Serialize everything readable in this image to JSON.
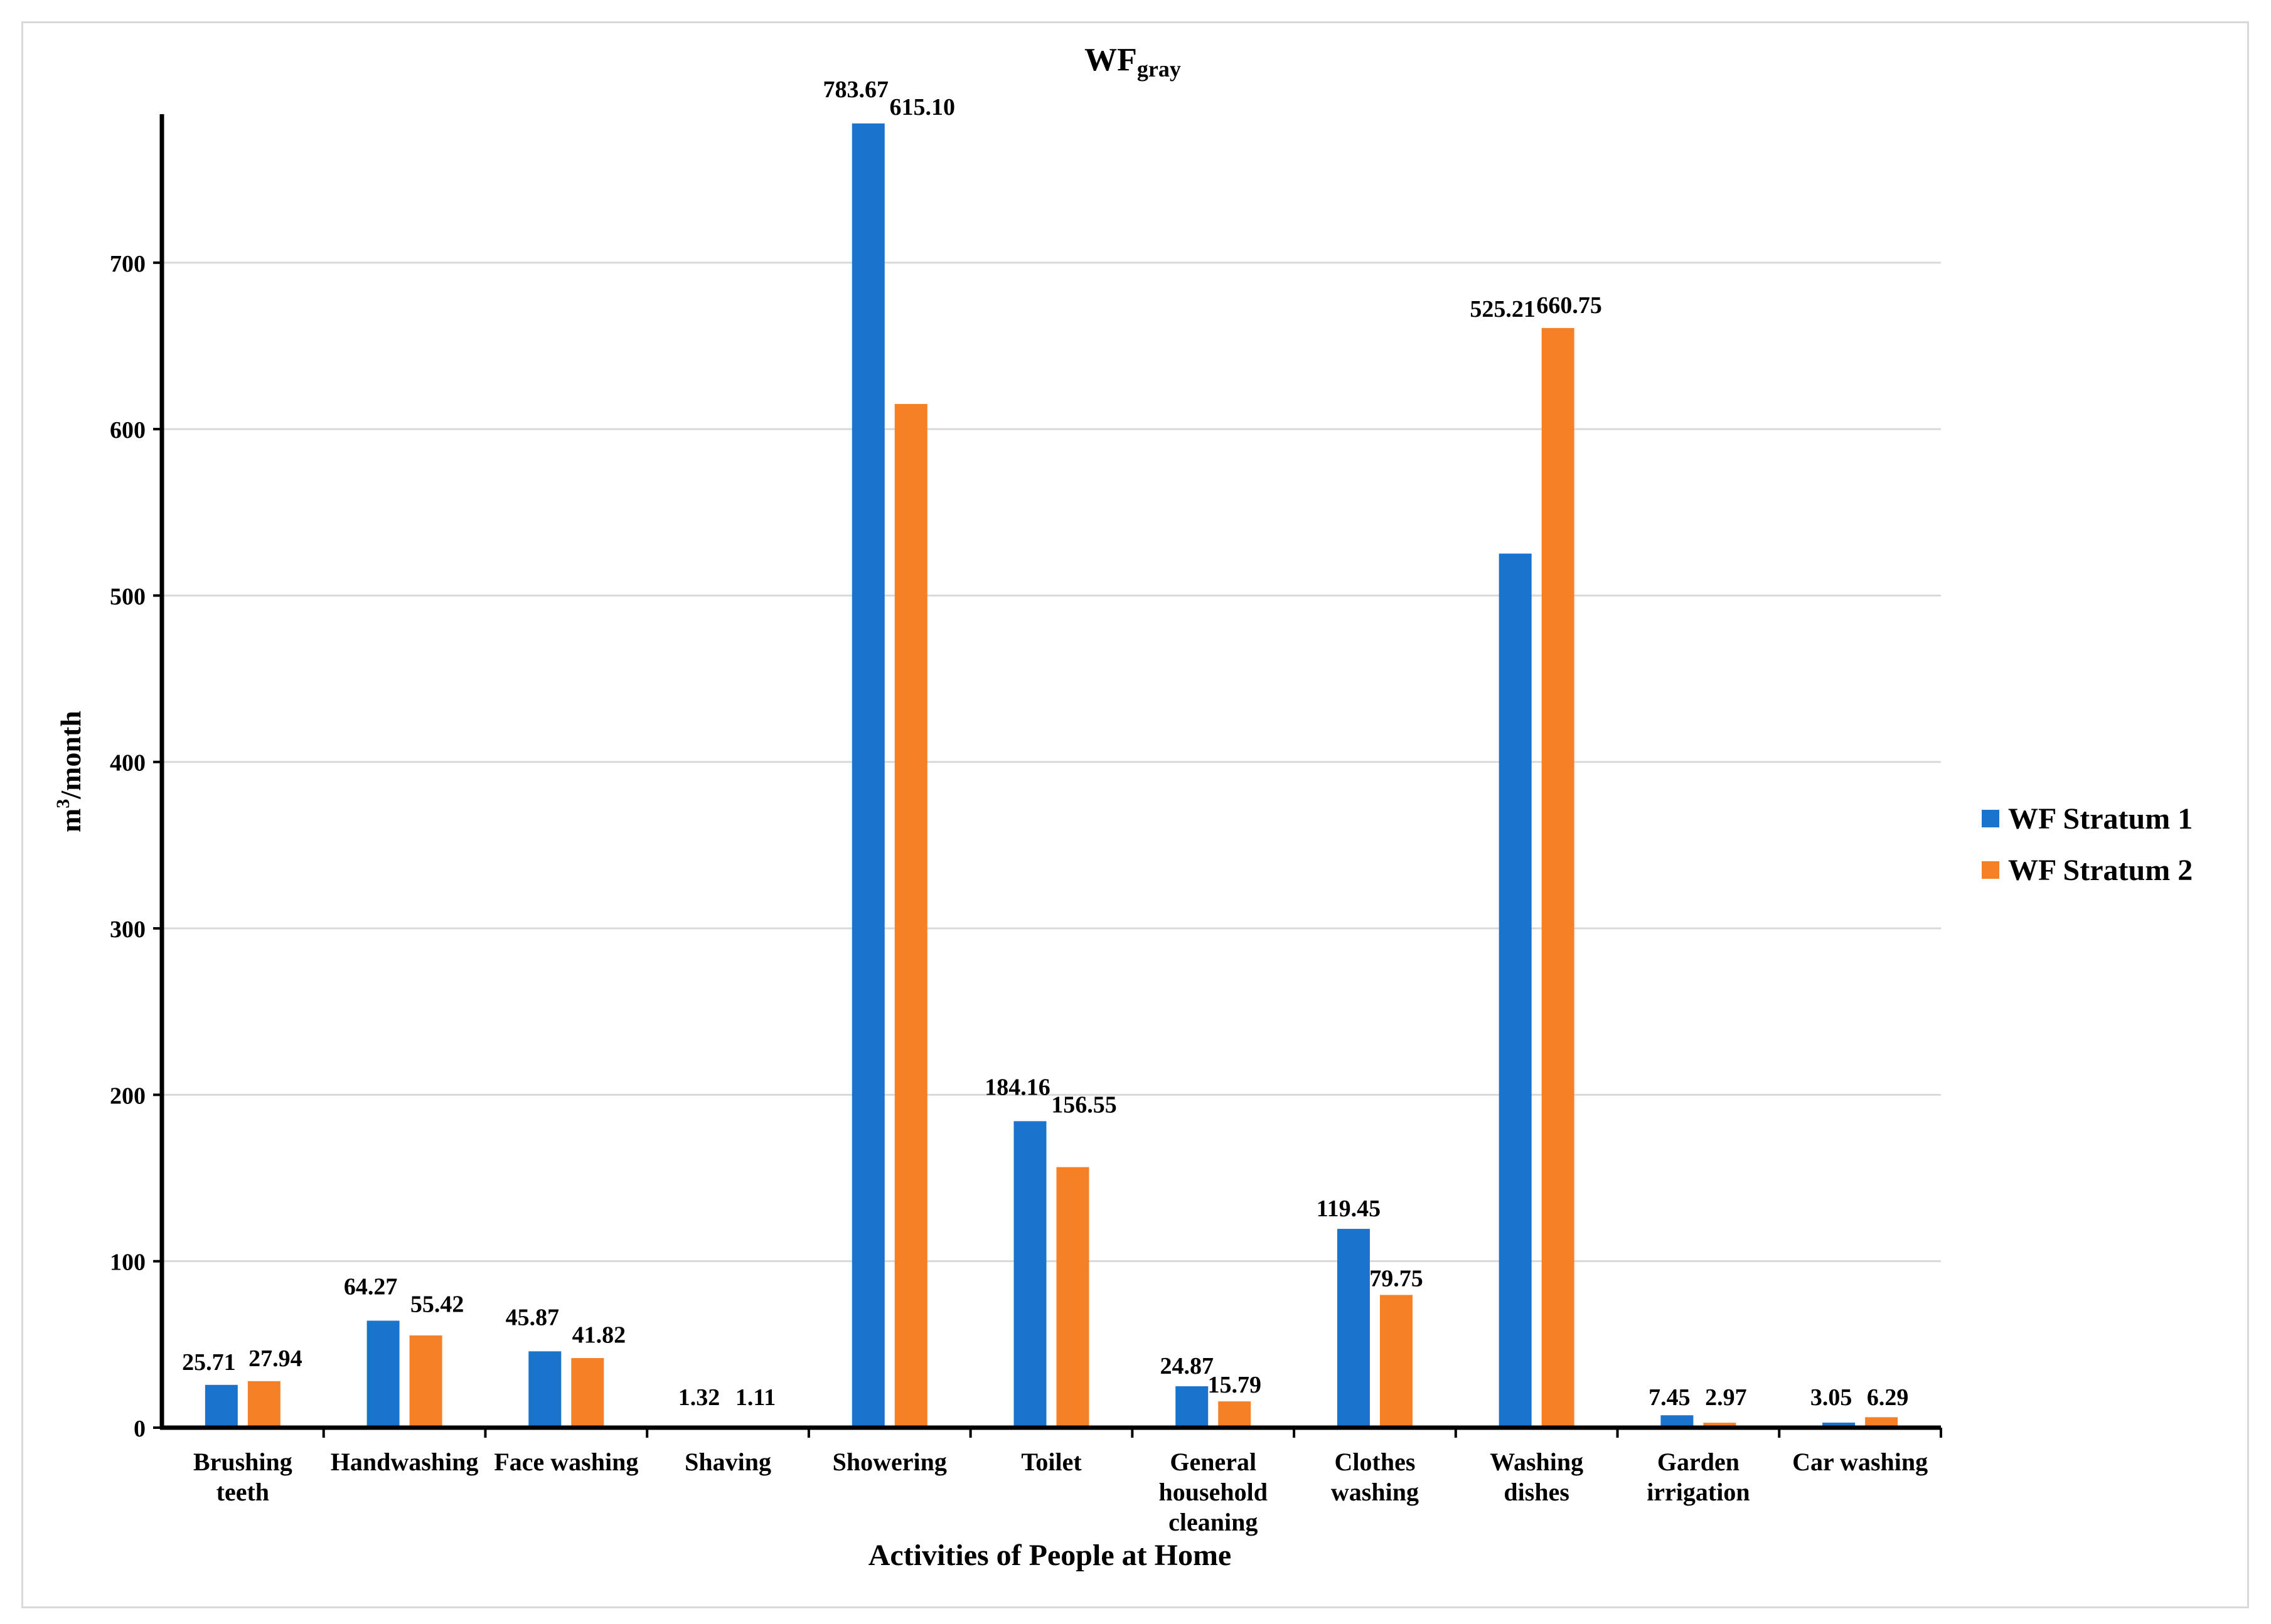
{
  "chart_data": {
    "type": "bar",
    "title": "WF",
    "title_subscript": "gray",
    "xlabel": "Activities of People at Home",
    "ylabel": "m",
    "ylabel_superscript": "3",
    "ylabel_suffix": "/month",
    "ylim": [
      0,
      790
    ],
    "yticks": [
      0,
      100,
      200,
      300,
      400,
      500,
      600,
      700
    ],
    "grid": true,
    "legend_position": "right",
    "categories": [
      [
        "Brushing",
        "teeth"
      ],
      [
        "Handwashing"
      ],
      [
        "Face washing"
      ],
      [
        "Shaving"
      ],
      [
        "Showering"
      ],
      [
        "Toilet"
      ],
      [
        "General",
        "household",
        "cleaning"
      ],
      [
        "Clothes",
        "washing"
      ],
      [
        "Washing",
        "dishes"
      ],
      [
        "Garden",
        "irrigation"
      ],
      [
        "Car washing"
      ]
    ],
    "series": [
      {
        "name": "WF Stratum 1",
        "color": "#1a73cc",
        "values": [
          25.71,
          64.27,
          45.87,
          1.32,
          783.67,
          184.16,
          24.87,
          119.45,
          525.21,
          7.45,
          3.05
        ],
        "labels": [
          "25.71",
          "64.27",
          "45.87",
          "1.32",
          "783.67",
          "184.16",
          "24.87",
          "119.45",
          "525.21",
          "7.45",
          "3.05"
        ]
      },
      {
        "name": "WF Stratum 2",
        "color": "#f58025",
        "values": [
          27.94,
          55.42,
          41.82,
          1.11,
          615.1,
          156.55,
          15.79,
          79.75,
          660.75,
          2.97,
          6.29
        ],
        "labels": [
          "27.94",
          "55.42",
          "41.82",
          "1.11",
          "615.10",
          "156.55",
          "15.79",
          "79.75",
          "660.75",
          "2.97",
          "6.29"
        ]
      }
    ]
  }
}
